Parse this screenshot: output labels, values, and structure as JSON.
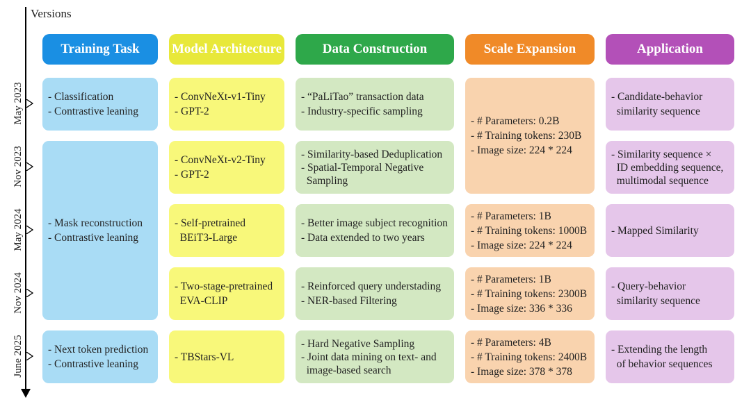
{
  "axis_label": "Versions",
  "headers": {
    "training": "Training Task",
    "architecture": "Model Architecture",
    "data": "Data Construction",
    "scale": "Scale Expansion",
    "application": "Application"
  },
  "colors": {
    "training_header": "#1a8fe3",
    "training_cell": "#a9dcf5",
    "architecture_header": "#e8e83a",
    "architecture_cell": "#f8f87a",
    "data_header": "#2ea84a",
    "data_cell": "#d3e8c2",
    "scale_header": "#f08a28",
    "scale_cell": "#f9d3ae",
    "application_header": "#b350b8",
    "application_cell": "#e5c6ea"
  },
  "versions": [
    "May 2023",
    "Nov 2023",
    "May 2024",
    "Nov 2024",
    "June 2025"
  ],
  "training": [
    [
      "- Classification",
      "- Contrastive leaning"
    ],
    [
      "- Mask reconstruction",
      "- Contrastive leaning"
    ],
    [
      "- Next token prediction",
      "- Contrastive leaning"
    ]
  ],
  "architecture": [
    [
      "- ConvNeXt-v1-Tiny",
      "- GPT-2"
    ],
    [
      "- ConvNeXt-v2-Tiny",
      "- GPT-2"
    ],
    [
      "- Self-pretrained",
      "  BEiT3-Large"
    ],
    [
      "- Two-stage-pretrained",
      "  EVA-CLIP"
    ],
    [
      "- TBStars-VL"
    ]
  ],
  "data": [
    [
      "- “PaLiTao” transaction data",
      "- Industry-specific sampling"
    ],
    [
      "- Similarity-based Deduplication",
      "- Spatial-Temporal Negative",
      "  Sampling"
    ],
    [
      "- Better image subject recognition",
      "- Data extended to two years"
    ],
    [
      "- Reinforced query understading",
      "- NER-based Filtering"
    ],
    [
      "- Hard Negative Sampling",
      "- Joint data mining on text- and",
      "  image-based search"
    ]
  ],
  "scale": [
    [
      "- # Parameters: 0.2B",
      "- # Training tokens: 230B",
      "- Image size: 224 * 224"
    ],
    [
      "- # Parameters: 1B",
      "- # Training tokens: 1000B",
      "- Image size: 224 * 224"
    ],
    [
      "- # Parameters: 1B",
      "- # Training tokens: 2300B",
      "- Image size: 336 * 336"
    ],
    [
      "- # Parameters: 4B",
      "- # Training tokens: 2400B",
      "- Image size: 378 * 378"
    ]
  ],
  "application": [
    [
      "- Candidate-behavior",
      "  similarity sequence"
    ],
    [
      "- Similarity sequence ×",
      "  ID embedding sequence,",
      "  multimodal sequence"
    ],
    [
      "- Mapped Similarity"
    ],
    [
      "- Query-behavior",
      "  similarity sequence"
    ],
    [
      "- Extending the length",
      "  of behavior sequences"
    ]
  ]
}
